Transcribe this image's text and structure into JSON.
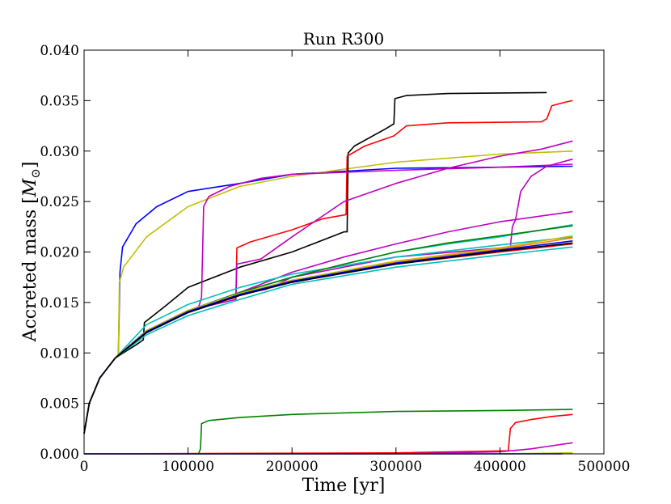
{
  "chart_data": {
    "type": "line",
    "title": "Run R300",
    "xlabel": "Time [yr]",
    "ylabel_prefix": "Accreted mass [",
    "ylabel_symbol": "M",
    "ylabel_subscript": "⊙",
    "ylabel_suffix": "]",
    "xlim": [
      0,
      500000
    ],
    "ylim": [
      0,
      0.04
    ],
    "xticks": [
      0,
      100000,
      200000,
      300000,
      400000,
      500000
    ],
    "xtick_labels": [
      "0",
      "100000",
      "200000",
      "300000",
      "400000",
      "500000"
    ],
    "yticks": [
      0,
      0.005,
      0.01,
      0.015,
      0.02,
      0.025,
      0.03,
      0.035,
      0.04
    ],
    "ytick_labels": [
      "0.000",
      "0.005",
      "0.010",
      "0.015",
      "0.020",
      "0.025",
      "0.030",
      "0.035",
      "0.040"
    ],
    "grid": false,
    "series": [
      {
        "color": "#0000ff",
        "points": [
          [
            0,
            0.002
          ],
          [
            5000,
            0.005
          ],
          [
            15000,
            0.0075
          ],
          [
            30000,
            0.0095
          ],
          [
            33000,
            0.0098
          ],
          [
            34500,
            0.018
          ],
          [
            37000,
            0.0205
          ],
          [
            50000,
            0.0228
          ],
          [
            70000,
            0.0245
          ],
          [
            100000,
            0.026
          ],
          [
            150000,
            0.0268
          ],
          [
            200000,
            0.0277
          ],
          [
            300000,
            0.0283
          ],
          [
            400000,
            0.0284
          ],
          [
            470000,
            0.0285
          ]
        ]
      },
      {
        "color": "#bfbf00",
        "points": [
          [
            0,
            0.002
          ],
          [
            5000,
            0.005
          ],
          [
            15000,
            0.0075
          ],
          [
            30000,
            0.0095
          ],
          [
            33000,
            0.0097
          ],
          [
            34000,
            0.017
          ],
          [
            38000,
            0.0185
          ],
          [
            60000,
            0.0215
          ],
          [
            100000,
            0.0245
          ],
          [
            150000,
            0.0265
          ],
          [
            200000,
            0.0275
          ],
          [
            300000,
            0.0289
          ],
          [
            400000,
            0.0297
          ],
          [
            470000,
            0.03
          ]
        ]
      },
      {
        "color": "#000000",
        "points": [
          [
            0,
            0.002
          ],
          [
            5000,
            0.005
          ],
          [
            15000,
            0.0075
          ],
          [
            30000,
            0.0095
          ],
          [
            50000,
            0.0108
          ],
          [
            57000,
            0.0113
          ],
          [
            58000,
            0.013
          ],
          [
            80000,
            0.0148
          ],
          [
            100000,
            0.0165
          ],
          [
            150000,
            0.0185
          ],
          [
            200000,
            0.02
          ],
          [
            250000,
            0.022
          ],
          [
            253000,
            0.022
          ],
          [
            254000,
            0.0298
          ],
          [
            260000,
            0.0305
          ],
          [
            290000,
            0.0322
          ],
          [
            298000,
            0.0327
          ],
          [
            299000,
            0.0352
          ],
          [
            310000,
            0.0355
          ],
          [
            350000,
            0.0357
          ],
          [
            445000,
            0.0358
          ]
        ]
      },
      {
        "color": "#ff0000",
        "points": [
          [
            0,
            0.002
          ],
          [
            5000,
            0.005
          ],
          [
            15000,
            0.0075
          ],
          [
            30000,
            0.0095
          ],
          [
            60000,
            0.0122
          ],
          [
            100000,
            0.0142
          ],
          [
            146000,
            0.0155
          ],
          [
            147000,
            0.0204
          ],
          [
            160000,
            0.021
          ],
          [
            200000,
            0.0222
          ],
          [
            230000,
            0.0233
          ],
          [
            252000,
            0.0237
          ],
          [
            253000,
            0.0295
          ],
          [
            270000,
            0.0305
          ],
          [
            298000,
            0.0315
          ],
          [
            310000,
            0.0325
          ],
          [
            350000,
            0.0328
          ],
          [
            440000,
            0.0329
          ],
          [
            445000,
            0.0332
          ],
          [
            450000,
            0.0345
          ],
          [
            465000,
            0.0349
          ],
          [
            470000,
            0.035
          ]
        ]
      },
      {
        "color": "#bf00bf",
        "points": [
          [
            0,
            0.002
          ],
          [
            5000,
            0.005
          ],
          [
            15000,
            0.0075
          ],
          [
            30000,
            0.0095
          ],
          [
            60000,
            0.0122
          ],
          [
            100000,
            0.014
          ],
          [
            110000,
            0.0145
          ],
          [
            113000,
            0.0155
          ],
          [
            115000,
            0.0245
          ],
          [
            120000,
            0.0255
          ],
          [
            140000,
            0.0265
          ],
          [
            170000,
            0.0273
          ],
          [
            200000,
            0.0277
          ],
          [
            300000,
            0.0281
          ],
          [
            400000,
            0.0284
          ],
          [
            470000,
            0.0287
          ]
        ]
      },
      {
        "color": "#bf00bf",
        "points": [
          [
            0,
            0.002
          ],
          [
            5000,
            0.005
          ],
          [
            15000,
            0.0075
          ],
          [
            30000,
            0.0095
          ],
          [
            60000,
            0.0122
          ],
          [
            100000,
            0.0142
          ],
          [
            146000,
            0.0153
          ],
          [
            147000,
            0.0188
          ],
          [
            170000,
            0.0193
          ],
          [
            200000,
            0.0215
          ],
          [
            250000,
            0.025
          ],
          [
            300000,
            0.0268
          ],
          [
            350000,
            0.0283
          ],
          [
            400000,
            0.0295
          ],
          [
            440000,
            0.0302
          ],
          [
            470000,
            0.031
          ]
        ]
      },
      {
        "color": "#bf00bf",
        "points": [
          [
            0,
            0.002
          ],
          [
            5000,
            0.005
          ],
          [
            15000,
            0.0075
          ],
          [
            30000,
            0.0095
          ],
          [
            60000,
            0.0122
          ],
          [
            100000,
            0.0142
          ],
          [
            150000,
            0.0158
          ],
          [
            175000,
            0.0163
          ],
          [
            200000,
            0.0175
          ],
          [
            300000,
            0.0195
          ],
          [
            410000,
            0.0205
          ],
          [
            412000,
            0.0225
          ],
          [
            415000,
            0.0232
          ],
          [
            420000,
            0.026
          ],
          [
            430000,
            0.0275
          ],
          [
            445000,
            0.0285
          ],
          [
            470000,
            0.0292
          ]
        ]
      },
      {
        "color": "#bf00bf",
        "points": [
          [
            0,
            0.002
          ],
          [
            5000,
            0.005
          ],
          [
            15000,
            0.0075
          ],
          [
            30000,
            0.0095
          ],
          [
            60000,
            0.0122
          ],
          [
            100000,
            0.0142
          ],
          [
            150000,
            0.016
          ],
          [
            200000,
            0.018
          ],
          [
            250000,
            0.0195
          ],
          [
            300000,
            0.0208
          ],
          [
            350000,
            0.022
          ],
          [
            400000,
            0.023
          ],
          [
            470000,
            0.024
          ]
        ]
      },
      {
        "color": "#00bfbf",
        "points": [
          [
            0,
            0.002
          ],
          [
            5000,
            0.005
          ],
          [
            15000,
            0.0075
          ],
          [
            30000,
            0.0095
          ],
          [
            60000,
            0.0128
          ],
          [
            100000,
            0.0148
          ],
          [
            150000,
            0.0165
          ],
          [
            200000,
            0.0178
          ],
          [
            300000,
            0.0195
          ],
          [
            400000,
            0.0207
          ],
          [
            470000,
            0.0215
          ]
        ]
      },
      {
        "color": "#00bfbf",
        "points": [
          [
            0,
            0.002
          ],
          [
            5000,
            0.005
          ],
          [
            15000,
            0.0075
          ],
          [
            30000,
            0.0095
          ],
          [
            60000,
            0.0122
          ],
          [
            100000,
            0.0142
          ],
          [
            150000,
            0.016
          ],
          [
            200000,
            0.0175
          ],
          [
            250000,
            0.0188
          ],
          [
            300000,
            0.02
          ],
          [
            350000,
            0.0208
          ],
          [
            400000,
            0.0215
          ],
          [
            470000,
            0.0227
          ]
        ]
      },
      {
        "color": "#00bfbf",
        "points": [
          [
            0,
            0.002
          ],
          [
            5000,
            0.005
          ],
          [
            15000,
            0.0075
          ],
          [
            30000,
            0.0095
          ],
          [
            60000,
            0.0118
          ],
          [
            100000,
            0.0137
          ],
          [
            150000,
            0.0153
          ],
          [
            200000,
            0.0168
          ],
          [
            300000,
            0.0185
          ],
          [
            400000,
            0.0197
          ],
          [
            470000,
            0.0205
          ]
        ]
      },
      {
        "color": "#008000",
        "points": [
          [
            0,
            0.002
          ],
          [
            5000,
            0.005
          ],
          [
            15000,
            0.0075
          ],
          [
            30000,
            0.0095
          ],
          [
            60000,
            0.0122
          ],
          [
            100000,
            0.0142
          ],
          [
            150000,
            0.016
          ],
          [
            200000,
            0.0175
          ],
          [
            250000,
            0.0188
          ],
          [
            300000,
            0.02
          ],
          [
            350000,
            0.0209
          ],
          [
            400000,
            0.0216
          ],
          [
            470000,
            0.0226
          ]
        ]
      },
      {
        "color": "#ff7f00",
        "points": [
          [
            0,
            0.002
          ],
          [
            5000,
            0.005
          ],
          [
            15000,
            0.0075
          ],
          [
            30000,
            0.0095
          ],
          [
            60000,
            0.0122
          ],
          [
            100000,
            0.0142
          ],
          [
            150000,
            0.0159
          ],
          [
            200000,
            0.0172
          ],
          [
            300000,
            0.019
          ],
          [
            400000,
            0.0203
          ],
          [
            470000,
            0.0214
          ]
        ]
      },
      {
        "color": "#bfbf00",
        "points": [
          [
            0,
            0.002
          ],
          [
            5000,
            0.005
          ],
          [
            15000,
            0.0075
          ],
          [
            30000,
            0.0095
          ],
          [
            60000,
            0.0122
          ],
          [
            100000,
            0.0142
          ],
          [
            150000,
            0.0159
          ],
          [
            200000,
            0.0172
          ],
          [
            300000,
            0.0191
          ],
          [
            400000,
            0.0204
          ],
          [
            470000,
            0.0216
          ]
        ]
      },
      {
        "color": "#ff0000",
        "points": [
          [
            0,
            0.002
          ],
          [
            5000,
            0.005
          ],
          [
            15000,
            0.0075
          ],
          [
            30000,
            0.0095
          ],
          [
            60000,
            0.0121
          ],
          [
            100000,
            0.014
          ],
          [
            150000,
            0.0157
          ],
          [
            200000,
            0.017
          ],
          [
            300000,
            0.0188
          ],
          [
            400000,
            0.02
          ],
          [
            470000,
            0.0208
          ]
        ]
      },
      {
        "color": "#0000ff",
        "points": [
          [
            0,
            0.002
          ],
          [
            5000,
            0.005
          ],
          [
            15000,
            0.0075
          ],
          [
            30000,
            0.0095
          ],
          [
            60000,
            0.0121
          ],
          [
            100000,
            0.0141
          ],
          [
            150000,
            0.0158
          ],
          [
            200000,
            0.0171
          ],
          [
            300000,
            0.0189
          ],
          [
            400000,
            0.0202
          ],
          [
            470000,
            0.0211
          ]
        ]
      },
      {
        "color": "#000000",
        "points": [
          [
            0,
            0.002
          ],
          [
            5000,
            0.005
          ],
          [
            15000,
            0.0075
          ],
          [
            30000,
            0.0095
          ],
          [
            60000,
            0.012
          ],
          [
            100000,
            0.014
          ],
          [
            150000,
            0.0157
          ],
          [
            200000,
            0.017
          ],
          [
            300000,
            0.0188
          ],
          [
            400000,
            0.0201
          ],
          [
            470000,
            0.0209
          ]
        ]
      },
      {
        "color": "#008000",
        "points": [
          [
            0,
            0
          ],
          [
            100000,
            0
          ],
          [
            110000,
            0
          ],
          [
            112000,
            0.0005
          ],
          [
            113000,
            0.003
          ],
          [
            120000,
            0.0033
          ],
          [
            150000,
            0.0036
          ],
          [
            200000,
            0.0039
          ],
          [
            300000,
            0.0042
          ],
          [
            400000,
            0.0043
          ],
          [
            470000,
            0.0044
          ]
        ]
      },
      {
        "color": "#ff0000",
        "points": [
          [
            0,
            0
          ],
          [
            300000,
            0.0001
          ],
          [
            405000,
            0.0003
          ],
          [
            408000,
            0.0003
          ],
          [
            410000,
            0.0025
          ],
          [
            415000,
            0.0031
          ],
          [
            430000,
            0.0034
          ],
          [
            450000,
            0.0037
          ],
          [
            470000,
            0.0039
          ]
        ]
      },
      {
        "color": "#bf00bf",
        "points": [
          [
            0,
            0
          ],
          [
            300000,
            0
          ],
          [
            400000,
            0.0002
          ],
          [
            430000,
            0.0005
          ],
          [
            450000,
            0.0008
          ],
          [
            470000,
            0.0011
          ]
        ]
      },
      {
        "color": "#bfbf00",
        "points": [
          [
            0,
            0
          ],
          [
            400000,
            0
          ],
          [
            470000,
            0.0001
          ]
        ]
      },
      {
        "color": "#0000ff",
        "points": [
          [
            0,
            0
          ],
          [
            460000,
            0
          ]
        ]
      }
    ]
  }
}
